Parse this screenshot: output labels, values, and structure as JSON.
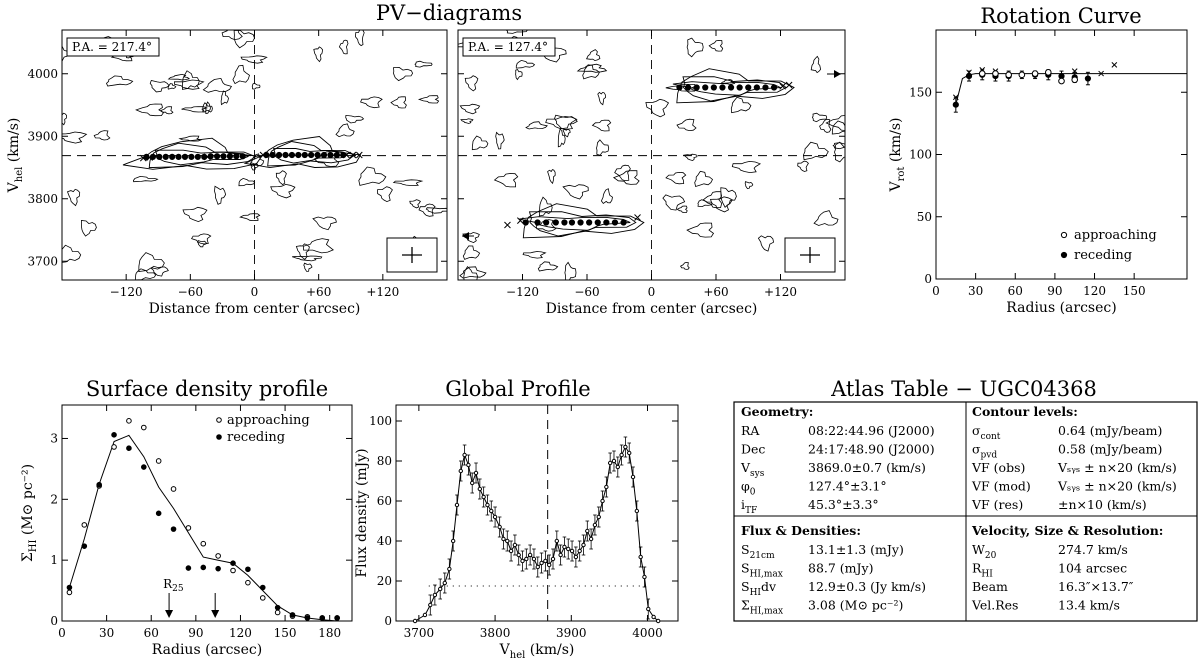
{
  "figure": {
    "pv_title": "PV−diagrams",
    "rc_title": "Rotation Curve",
    "sd_title": "Surface density profile",
    "gp_title": "Global Profile",
    "atlas_title": "Atlas Table − UGC04368"
  },
  "chart_data": [
    {
      "id": "pv1",
      "type": "scatter",
      "subtype": "pv-diagram",
      "annotation": "P.A. = 217.4°",
      "xlabel": "Distance from center (arcsec)",
      "ylabel": "V",
      "ylabel_sub": "hel",
      "ylabel_tail": " (km/s)",
      "xlim": [
        -180,
        180
      ],
      "ylim": [
        3670,
        4070
      ],
      "xticks": [
        "−120",
        "−60",
        "0",
        "+60",
        "+120"
      ],
      "xtick_values": [
        -120,
        -60,
        0,
        60,
        120
      ],
      "yticks": [
        "3700",
        "3800",
        "3900",
        "4000"
      ],
      "ytick_values": [
        3700,
        3800,
        3900,
        4000
      ],
      "vsys": 3869,
      "points": [
        [
          -101,
          3867
        ],
        [
          -95,
          3867
        ],
        [
          -89,
          3867
        ],
        [
          -83,
          3867
        ],
        [
          -77,
          3867
        ],
        [
          -71,
          3867
        ],
        [
          -65,
          3867
        ],
        [
          -59,
          3867
        ],
        [
          -53,
          3867
        ],
        [
          -47,
          3867
        ],
        [
          -41,
          3868
        ],
        [
          -35,
          3868
        ],
        [
          -29,
          3868
        ],
        [
          -23,
          3868
        ],
        [
          -17,
          3868
        ],
        [
          -11,
          3868
        ],
        [
          11,
          3870
        ],
        [
          17,
          3870
        ],
        [
          23,
          3870
        ],
        [
          29,
          3870
        ],
        [
          35,
          3870
        ],
        [
          41,
          3870
        ],
        [
          47,
          3870
        ],
        [
          53,
          3870
        ],
        [
          59,
          3870
        ],
        [
          65,
          3870
        ],
        [
          71,
          3870
        ],
        [
          77,
          3870
        ],
        [
          83,
          3870
        ]
      ],
      "crosses": [
        [
          -104,
          3865
        ],
        [
          -98,
          3866
        ],
        [
          -44,
          3867
        ],
        [
          8,
          3870
        ],
        [
          86,
          3870
        ],
        [
          92,
          3870
        ],
        [
          98,
          3870
        ]
      ],
      "grid": false
    },
    {
      "id": "pv2",
      "type": "scatter",
      "subtype": "pv-diagram",
      "annotation": "P.A. = 127.4°",
      "xlabel": "Distance from center (arcsec)",
      "xlim": [
        -180,
        180
      ],
      "ylim": [
        3670,
        4070
      ],
      "xticks": [
        "−120",
        "−60",
        "0",
        "+60",
        "+120"
      ],
      "xtick_values": [
        -120,
        -60,
        0,
        60,
        120
      ],
      "vsys": 3869,
      "points": [
        [
          -117,
          3762
        ],
        [
          -106,
          3762
        ],
        [
          -98,
          3762
        ],
        [
          -89,
          3762
        ],
        [
          -81,
          3762
        ],
        [
          -74,
          3762
        ],
        [
          -66,
          3762
        ],
        [
          -58,
          3762
        ],
        [
          -50,
          3762
        ],
        [
          -42,
          3762
        ],
        [
          -34,
          3762
        ],
        [
          -26,
          3762
        ],
        [
          26,
          3978
        ],
        [
          34,
          3978
        ],
        [
          42,
          3978
        ],
        [
          50,
          3978
        ],
        [
          58,
          3978
        ],
        [
          66,
          3978
        ],
        [
          74,
          3978
        ],
        [
          82,
          3978
        ],
        [
          90,
          3978
        ],
        [
          98,
          3978
        ],
        [
          106,
          3978
        ],
        [
          114,
          3978
        ]
      ],
      "crosses": [
        [
          -134,
          3758
        ],
        [
          -122,
          3765
        ],
        [
          -13,
          3770
        ],
        [
          122,
          3980
        ],
        [
          128,
          3982
        ]
      ],
      "grid": false
    },
    {
      "id": "rc",
      "type": "scatter",
      "subtype": "rotation-curve",
      "xlabel": "Radius (arcsec)",
      "ylabel": "V",
      "ylabel_sub": "rot",
      "ylabel_tail": " (km/s)",
      "xlim": [
        0,
        190
      ],
      "ylim": [
        0,
        200
      ],
      "xticks": [
        "0",
        "30",
        "60",
        "90",
        "120",
        "150"
      ],
      "xtick_values": [
        0,
        30,
        60,
        90,
        120,
        150
      ],
      "yticks": [
        "0",
        "50",
        "100",
        "150"
      ],
      "ytick_values": [
        0,
        50,
        100,
        150
      ],
      "model": [
        [
          15,
          140
        ],
        [
          20,
          161
        ],
        [
          25,
          164
        ],
        [
          30,
          165
        ],
        [
          190,
          165
        ]
      ],
      "points": [
        [
          15,
          140,
          6
        ],
        [
          25,
          163,
          4
        ],
        [
          35,
          164,
          4
        ],
        [
          45,
          163,
          4
        ],
        [
          55,
          163,
          4
        ],
        [
          65,
          164,
          3
        ],
        [
          75,
          164,
          3
        ],
        [
          85,
          164,
          4
        ],
        [
          95,
          163,
          4
        ],
        [
          105,
          162,
          4
        ],
        [
          115,
          161,
          5
        ]
      ],
      "approaching": [
        [
          35,
          165
        ],
        [
          45,
          165
        ],
        [
          55,
          164
        ],
        [
          65,
          164
        ],
        [
          75,
          165
        ],
        [
          85,
          166
        ],
        [
          95,
          159
        ],
        [
          105,
          160
        ]
      ],
      "crosses": [
        [
          15,
          146
        ],
        [
          25,
          166
        ],
        [
          35,
          168
        ],
        [
          45,
          167
        ],
        [
          105,
          167
        ],
        [
          125,
          165
        ],
        [
          135,
          172
        ]
      ],
      "legend": [
        "approaching",
        "receding"
      ],
      "legend_position": "bottom-right",
      "grid": false
    },
    {
      "id": "sd",
      "type": "line",
      "subtype": "surface-density",
      "xlabel": "Radius (arcsec)",
      "ylabel": "Σ",
      "ylabel_sub": "HI",
      "ylabel_tail": " (M⊙ pc⁻²)",
      "xlim": [
        0,
        195
      ],
      "ylim": [
        0,
        3.55
      ],
      "xticks": [
        "0",
        "30",
        "60",
        "90",
        "120",
        "150",
        "180"
      ],
      "xtick_values": [
        0,
        30,
        60,
        90,
        120,
        150,
        180
      ],
      "yticks": [
        "0",
        "1",
        "2",
        "3"
      ],
      "ytick_values": [
        0,
        1,
        2,
        3
      ],
      "line": [
        [
          5,
          0.55
        ],
        [
          15,
          1.35
        ],
        [
          25,
          2.25
        ],
        [
          35,
          2.95
        ],
        [
          45,
          3.05
        ],
        [
          55,
          2.7
        ],
        [
          65,
          2.2
        ],
        [
          75,
          1.85
        ],
        [
          85,
          1.45
        ],
        [
          95,
          1.05
        ],
        [
          105,
          1.0
        ],
        [
          115,
          0.95
        ],
        [
          125,
          0.75
        ],
        [
          135,
          0.5
        ],
        [
          145,
          0.25
        ],
        [
          155,
          0.1
        ],
        [
          165,
          0.05
        ],
        [
          175,
          0.02
        ],
        [
          185,
          0.0
        ]
      ],
      "approaching": [
        [
          5,
          0.47
        ],
        [
          15,
          1.58
        ],
        [
          25,
          2.22
        ],
        [
          35,
          2.86
        ],
        [
          45,
          3.29
        ],
        [
          55,
          3.18
        ],
        [
          65,
          2.63
        ],
        [
          75,
          2.17
        ],
        [
          85,
          1.53
        ],
        [
          95,
          1.27
        ],
        [
          105,
          1.07
        ],
        [
          115,
          0.83
        ],
        [
          125,
          0.63
        ],
        [
          135,
          0.38
        ],
        [
          145,
          0.14
        ],
        [
          155,
          0.08
        ],
        [
          165,
          0.07
        ],
        [
          175,
          0.05
        ],
        [
          185,
          0.05
        ]
      ],
      "receding": [
        [
          5,
          0.55
        ],
        [
          15,
          1.23
        ],
        [
          25,
          2.24
        ],
        [
          35,
          3.06
        ],
        [
          45,
          2.84
        ],
        [
          55,
          2.53
        ],
        [
          65,
          1.77
        ],
        [
          75,
          1.51
        ],
        [
          85,
          0.87
        ],
        [
          95,
          0.88
        ],
        [
          105,
          0.86
        ],
        [
          115,
          0.95
        ],
        [
          125,
          0.85
        ],
        [
          135,
          0.55
        ],
        [
          145,
          0.22
        ],
        [
          155,
          0.1
        ],
        [
          165,
          0.05
        ],
        [
          175,
          0.05
        ],
        [
          185,
          0.05
        ]
      ],
      "arrows": [
        {
          "x": 72,
          "label": "R",
          "sub": "25"
        },
        {
          "x": 103,
          "label": "",
          "sub": ""
        }
      ],
      "legend": [
        "approaching",
        "receding"
      ],
      "legend_position": "top-right",
      "grid": false
    },
    {
      "id": "gp",
      "type": "line",
      "subtype": "global-profile",
      "xlabel": "V",
      "xlabel_sub": "hel",
      "xlabel_tail": " (km/s)",
      "ylabel": "Flux density (mJy)",
      "xlim": [
        3670,
        4040
      ],
      "ylim": [
        0,
        108
      ],
      "xticks": [
        "3700",
        "3800",
        "3900",
        "4000"
      ],
      "xtick_values": [
        3700,
        3800,
        3900,
        4000
      ],
      "yticks": [
        "0",
        "20",
        "40",
        "60",
        "80",
        "100"
      ],
      "ytick_values": [
        0,
        20,
        40,
        60,
        80,
        100
      ],
      "vsys": 3869,
      "half_level": 17.5,
      "half_range": [
        3713,
        3998
      ],
      "profile": [
        [
          3695,
          0
        ],
        [
          3708,
          3
        ],
        [
          3715,
          8
        ],
        [
          3721,
          13
        ],
        [
          3728,
          16
        ],
        [
          3734,
          19
        ],
        [
          3740,
          26
        ],
        [
          3745,
          40
        ],
        [
          3750,
          58
        ],
        [
          3755,
          75
        ],
        [
          3760,
          83
        ],
        [
          3765,
          78
        ],
        [
          3770,
          69
        ],
        [
          3775,
          74
        ],
        [
          3780,
          66
        ],
        [
          3785,
          62
        ],
        [
          3790,
          58
        ],
        [
          3795,
          55
        ],
        [
          3800,
          52
        ],
        [
          3806,
          47
        ],
        [
          3811,
          41
        ],
        [
          3816,
          40
        ],
        [
          3821,
          35
        ],
        [
          3826,
          38
        ],
        [
          3831,
          33
        ],
        [
          3836,
          30
        ],
        [
          3841,
          31
        ],
        [
          3846,
          33
        ],
        [
          3851,
          31
        ],
        [
          3856,
          27
        ],
        [
          3861,
          29
        ],
        [
          3866,
          30
        ],
        [
          3871,
          28
        ],
        [
          3876,
          31
        ],
        [
          3881,
          40
        ],
        [
          3886,
          33
        ],
        [
          3891,
          37
        ],
        [
          3896,
          36
        ],
        [
          3901,
          35
        ],
        [
          3906,
          32
        ],
        [
          3911,
          35
        ],
        [
          3916,
          38
        ],
        [
          3921,
          45
        ],
        [
          3926,
          41
        ],
        [
          3931,
          48
        ],
        [
          3936,
          52
        ],
        [
          3941,
          60
        ],
        [
          3946,
          67
        ],
        [
          3951,
          79
        ],
        [
          3956,
          80
        ],
        [
          3961,
          77
        ],
        [
          3966,
          83
        ],
        [
          3971,
          87
        ],
        [
          3976,
          84
        ],
        [
          3981,
          72
        ],
        [
          3986,
          55
        ],
        [
          3991,
          32
        ],
        [
          3996,
          22
        ],
        [
          4001,
          6
        ],
        [
          4008,
          2
        ],
        [
          4014,
          0
        ]
      ],
      "errors": 5,
      "grid": false
    }
  ],
  "atlas": {
    "geometry": {
      "heading": "Geometry:",
      "rows": [
        {
          "label": "RA",
          "sub": "",
          "value": "08:22:44.96 (J2000)"
        },
        {
          "label": "Dec",
          "sub": "",
          "value": "24:17:48.90 (J2000)"
        },
        {
          "label": "V",
          "sub": "sys",
          "value": "3869.0±0.7 (km/s)"
        },
        {
          "label": "φ",
          "sub": "0",
          "value": "127.4°±3.1°"
        },
        {
          "label": "i",
          "sub": "TF",
          "value": "45.3°±3.3°"
        }
      ]
    },
    "contours": {
      "heading": "Contour levels:",
      "rows": [
        {
          "label": "σ",
          "sub": "cont",
          "value": "0.64 (mJy/beam)"
        },
        {
          "label": "σ",
          "sub": "pvd",
          "value": "0.58 (mJy/beam)"
        },
        {
          "label": "VF (obs)",
          "sub": "",
          "value": "Vₛᵧₛ ± n×20 (km/s)"
        },
        {
          "label": "VF (mod)",
          "sub": "",
          "value": "Vₛᵧₛ ± n×20 (km/s)"
        },
        {
          "label": "VF (res)",
          "sub": "",
          "value": "±n×10 (km/s)"
        }
      ]
    },
    "flux": {
      "heading": "Flux & Densities:",
      "rows": [
        {
          "label": "S",
          "sub": "21cm",
          "value": "13.1±1.3 (mJy)"
        },
        {
          "label": "S",
          "sub": "HI,max",
          "value": "88.7 (mJy)"
        },
        {
          "label": "S",
          "sub": "HI",
          "tail": "dv",
          "value": "12.9±0.3 (Jy km/s)"
        },
        {
          "label": "Σ",
          "sub": "HI,max",
          "value": "3.08 (M⊙ pc⁻²)"
        }
      ]
    },
    "velocity": {
      "heading": "Velocity, Size & Resolution:",
      "rows": [
        {
          "label": "W",
          "sub": "20",
          "value": "274.7 km/s"
        },
        {
          "label": "R",
          "sub": "HI",
          "value": "104 arcsec"
        },
        {
          "label": "Beam",
          "sub": "",
          "value": "16.3″×13.7″"
        },
        {
          "label": "Vel.Res",
          "sub": "",
          "value": "13.4 km/s"
        }
      ]
    }
  }
}
